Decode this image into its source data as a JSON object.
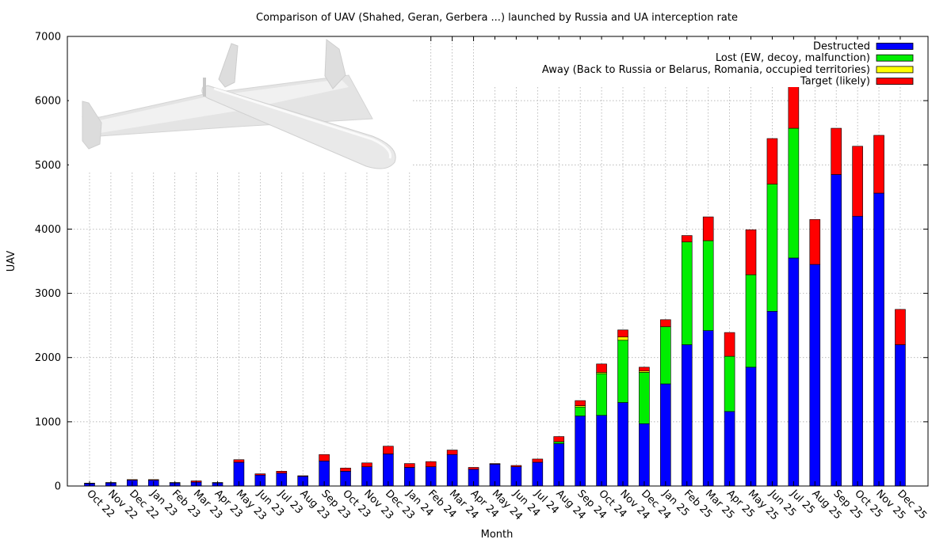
{
  "chart_data": {
    "type": "bar",
    "stacked": true,
    "title": "Comparison of UAV (Shahed, Geran, Gerbera ...) launched by Russia and UA interception rate",
    "xlabel": "Month",
    "ylabel": "UAV",
    "ylim": [
      0,
      7000
    ],
    "yticks": [
      0,
      1000,
      2000,
      3000,
      4000,
      5000,
      6000,
      7000
    ],
    "grid": true,
    "legend_position": "top-right",
    "categories": [
      "Oct 22",
      "Nov 22",
      "Dec 22",
      "Jan 23",
      "Feb 23",
      "Mar 23",
      "Apr 23",
      "May 23",
      "Jun 23",
      "Jul 23",
      "Aug 23",
      "Sep 23",
      "Oct 23",
      "Nov 23",
      "Dec 23",
      "Jan 24",
      "Feb 24",
      "Mar 24",
      "Apr 24",
      "May 24",
      "Jun 24",
      "Jul 24",
      "Aug 24",
      "Sep 24",
      "Oct 24",
      "Nov 24",
      "Dec 24",
      "Jan 25",
      "Feb 25",
      "Mar 25",
      "Apr 25",
      "May 25",
      "Jun 25",
      "Jul 25",
      "Aug 25",
      "Sep 25",
      "Oct 25",
      "Nov 25",
      "Dec 25"
    ],
    "series": [
      {
        "name": "Destructed",
        "color": "#0000ff",
        "values": [
          40,
          50,
          90,
          90,
          50,
          60,
          50,
          370,
          170,
          200,
          150,
          390,
          230,
          300,
          500,
          290,
          300,
          490,
          260,
          340,
          300,
          370,
          660,
          1090,
          1100,
          1300,
          970,
          1590,
          2200,
          2420,
          1160,
          1850,
          2720,
          3550,
          3450,
          4850,
          4200,
          4560,
          2200
        ]
      },
      {
        "name": "Lost (EW, decoy, malfunction)",
        "color": "#00ee00",
        "values": [
          0,
          0,
          0,
          0,
          0,
          0,
          0,
          0,
          0,
          0,
          0,
          0,
          0,
          0,
          0,
          0,
          0,
          0,
          0,
          0,
          0,
          0,
          30,
          140,
          650,
          970,
          800,
          890,
          1600,
          1400,
          860,
          1440,
          1980,
          2020,
          0,
          0,
          0,
          0,
          0
        ]
      },
      {
        "name": "Away (Back to Russia or Belarus, Romania, occupied territories)",
        "color": "#ffff00",
        "values": [
          0,
          0,
          0,
          0,
          0,
          0,
          0,
          0,
          0,
          0,
          0,
          0,
          0,
          0,
          0,
          0,
          0,
          0,
          0,
          0,
          0,
          0,
          0,
          20,
          20,
          50,
          20,
          0,
          0,
          0,
          0,
          0,
          0,
          0,
          0,
          0,
          0,
          0,
          0
        ]
      },
      {
        "name": "Target (likely)",
        "color": "#ff0000",
        "values": [
          5,
          5,
          10,
          10,
          5,
          20,
          5,
          40,
          20,
          30,
          10,
          100,
          50,
          60,
          120,
          60,
          80,
          70,
          30,
          10,
          20,
          50,
          80,
          80,
          130,
          110,
          60,
          110,
          100,
          370,
          370,
          700,
          710,
          710,
          700,
          720,
          1090,
          900,
          550
        ]
      }
    ]
  }
}
